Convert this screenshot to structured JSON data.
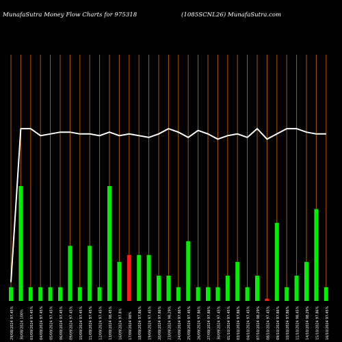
{
  "header": {
    "left": "MunafaSutra  Money Flow  Charts for 975318",
    "right": "(1085SCNL26) MunafaSutra.com"
  },
  "colors": {
    "background": "#000000",
    "grid": "#b35a00",
    "positive_bar": "#00ee00",
    "negative_bar": "#ff1a1a",
    "line": "#ffffff",
    "label": "#ffffff"
  },
  "chart_data": {
    "type": "bar",
    "title": "MunafaSutra  Money Flow  Charts for 975318",
    "subtitle": "(1085SCNL26) MunafaSutra.com",
    "ylim": [
      0,
      100
    ],
    "grid": "vertical",
    "categories": [
      "29/08/2024 97.45%",
      "30/08/2024 100%",
      "03/09/2024 97.45%",
      "04/09/2024 97.45%",
      "05/09/2024 97.45%",
      "06/09/2024 97.45%",
      "09/09/2024 97.45%",
      "10/09/2024 97.45%",
      "11/09/2024 97.45%",
      "12/09/2024 97.45%",
      "13/09/2024 98.45%",
      "16/09/2024 97.8%",
      "17/09/2024 98%",
      "18/09/2024 97.86%",
      "19/09/2024 97.45%",
      "20/09/2024 97.86%",
      "23/09/2024 98.29%",
      "24/09/2024 97.86%",
      "25/09/2024 97.45%",
      "26/09/2024 97.86%",
      "27/09/2024 97.86%",
      "30/09/2024 97.45%",
      "01/10/2024 97.45%",
      "03/10/2024 97.86%",
      "04/10/2024 97.45%",
      "07/10/2024 98.29%",
      "08/10/2024 97.45%",
      "09/10/2024 97.86%",
      "10/10/2024 97.86%",
      "11/10/2024 98.45%",
      "14/10/2024 98.29%",
      "15/10/2024 97.86%",
      "16/10/2024 97.45%"
    ],
    "series": [
      {
        "type": "bar",
        "values": [
          6,
          50,
          6,
          6,
          6,
          6,
          24,
          6,
          24,
          6,
          50,
          17,
          20,
          20,
          20,
          11,
          11,
          6,
          26,
          6,
          6,
          6,
          11,
          17,
          6,
          11,
          1,
          34,
          6,
          11,
          17,
          40,
          6
        ],
        "direction": [
          "up",
          "up",
          "up",
          "up",
          "up",
          "up",
          "up",
          "up",
          "up",
          "up",
          "up",
          "up",
          "down",
          "up",
          "up",
          "up",
          "up",
          "up",
          "up",
          "up",
          "up",
          "up",
          "up",
          "up",
          "up",
          "up",
          "down",
          "up",
          "up",
          "up",
          "up",
          "up",
          "up"
        ]
      },
      {
        "type": "line",
        "values": [
          10,
          98,
          98,
          94,
          95,
          96,
          96,
          95,
          95,
          94,
          96,
          94,
          95,
          94,
          93,
          95,
          98,
          96,
          93,
          97,
          95,
          92,
          94,
          95,
          93,
          98,
          92,
          95,
          98,
          98,
          96,
          95,
          95
        ]
      }
    ]
  }
}
